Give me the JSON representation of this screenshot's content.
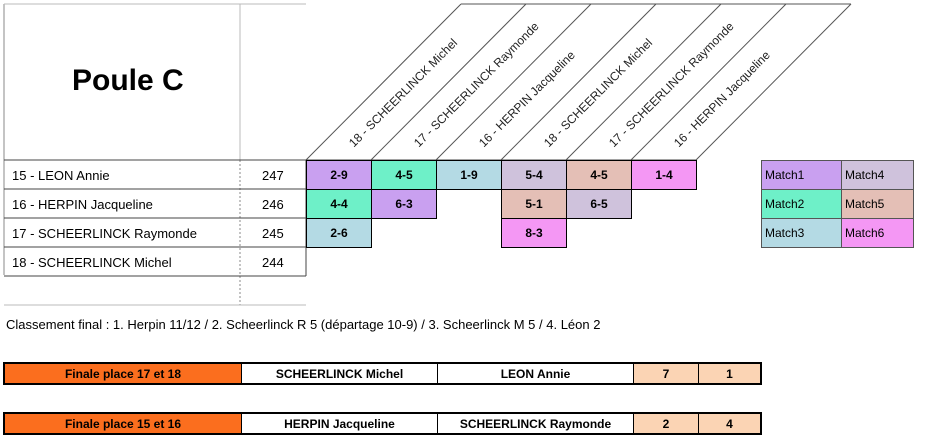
{
  "pool": {
    "title": "Poule C"
  },
  "diagonal_headers": [
    "18 - SCHEERLINCK Michel",
    "17 - SCHEERLINCK Raymonde",
    "16 - HERPIN Jacqueline",
    "18 - SCHEERLINCK Michel",
    "17 - SCHEERLINCK Raymonde",
    "16 - HERPIN Jacqueline"
  ],
  "players": [
    {
      "name": "15 - LEON Annie",
      "points": "247"
    },
    {
      "name": "16 - HERPIN Jacqueline",
      "points": "246"
    },
    {
      "name": "17 - SCHEERLINCK Raymonde",
      "points": "245"
    },
    {
      "name": "18 - SCHEERLINCK Michel",
      "points": "244"
    }
  ],
  "scores": [
    [
      "2-9",
      "4-5",
      "1-9",
      "5-4",
      "4-5",
      "1-4"
    ],
    [
      "4-4",
      "6-3",
      "",
      "5-1",
      "6-5",
      ""
    ],
    [
      "2-6",
      "",
      "",
      "8-3",
      "",
      ""
    ]
  ],
  "legend": [
    {
      "label": "Match1",
      "color": "#c9a0f0"
    },
    {
      "label": "Match4",
      "color": "#cfc2dc"
    },
    {
      "label": "Match2",
      "color": "#6ef0c8"
    },
    {
      "label": "Match5",
      "color": "#e4bfb6"
    },
    {
      "label": "Match3",
      "color": "#b4dae4"
    },
    {
      "label": "Match6",
      "color": "#f497f4"
    }
  ],
  "colors": {
    "match1": "#c9a0f0",
    "match2": "#6ef0c8",
    "match3": "#b4dae4",
    "match4": "#cfc2dc",
    "match5": "#e4bfb6",
    "match6": "#f497f4",
    "final_label": "#fb6e1e",
    "final_score": "#fbd4b4"
  },
  "classement": "Classement final : 1. Herpin 11/12 / 2. Scheerlinck R 5 (départage 10-9) / 3. Scheerlinck M 5 / 4. Léon 2",
  "finals": [
    {
      "label": "Finale place 17 et 18",
      "player1": "SCHEERLINCK Michel",
      "player2": "LEON Annie",
      "score1": "7",
      "score2": "1"
    },
    {
      "label": "Finale place 15 et 16",
      "player1": "HERPIN Jacqueline",
      "player2": "SCHEERLINCK Raymonde",
      "score1": "2",
      "score2": "4"
    }
  ]
}
